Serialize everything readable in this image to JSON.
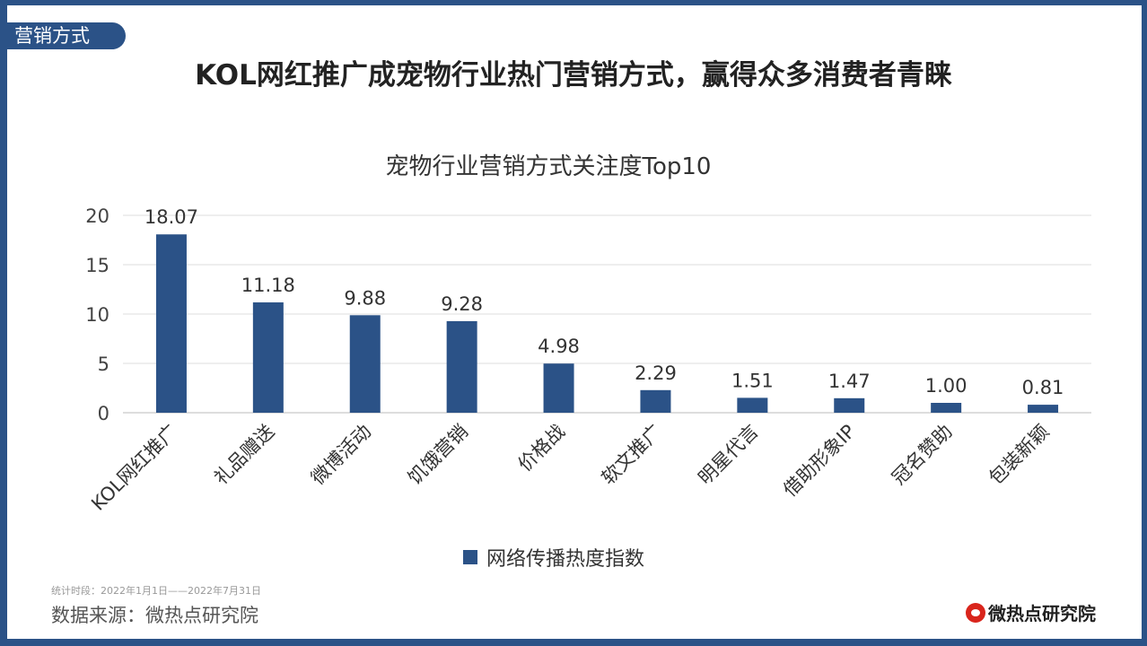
{
  "tag": "营销方式",
  "title": "KOL网红推广成宠物行业热门营销方式，赢得众多消费者青睐",
  "footer": {
    "period": "统计时段：2022年1月1日——2022年7月31日",
    "source": "数据来源：微热点研究院",
    "logo": "微热点研究院"
  },
  "chart_data": {
    "type": "bar",
    "title": "宠物行业营销方式关注度Top10",
    "categories": [
      "KOL网红推广",
      "礼品赠送",
      "微博活动",
      "饥饿营销",
      "价格战",
      "软文推广",
      "明星代言",
      "借助形象IP",
      "冠名赞助",
      "包装新颖"
    ],
    "series": [
      {
        "name": "网络传播热度指数",
        "values": [
          18.07,
          11.18,
          9.88,
          9.28,
          4.98,
          2.29,
          1.51,
          1.47,
          1.0,
          0.81
        ],
        "color": "#2b5287"
      }
    ],
    "data_labels": [
      "18.07",
      "11.18",
      "9.88",
      "9.28",
      "4.98",
      "2.29",
      "1.51",
      "1.47",
      "1.00",
      "0.81"
    ],
    "ylim": [
      0,
      20
    ],
    "yticks": [
      0,
      5,
      10,
      15,
      20
    ],
    "grid": true,
    "legend": "bottom"
  }
}
